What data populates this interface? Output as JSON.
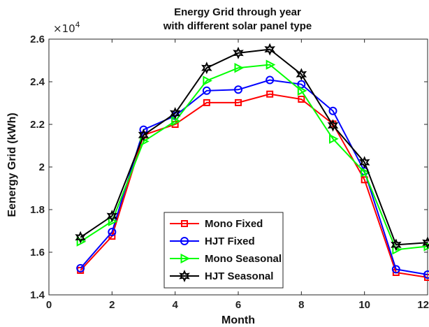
{
  "chart_data": {
    "type": "line",
    "title_line1": "Energy Grid through year",
    "title_line2": "with different solar panel type",
    "xlabel": "Month",
    "ylabel": "Eenergy Grid (kWh)",
    "y_exponent_base": "×10",
    "y_exponent_power": "4",
    "xlim": [
      0,
      12
    ],
    "ylim": [
      1.4,
      2.6
    ],
    "x_ticks": [
      0,
      2,
      4,
      6,
      8,
      10,
      12
    ],
    "x_tick_labels": [
      "0",
      "2",
      "4",
      "6",
      "8",
      "10",
      "12"
    ],
    "y_ticks": [
      1.4,
      1.6,
      1.8,
      2.0,
      2.2,
      2.4,
      2.6
    ],
    "y_tick_labels": [
      "1.4",
      "1.6",
      "1.8",
      "2",
      "2.2",
      "2.4",
      "2.6"
    ],
    "x": [
      1,
      2,
      3,
      4,
      5,
      6,
      7,
      8,
      9,
      10,
      11,
      12
    ],
    "grid": false,
    "legend_position": "bottom-center",
    "series": [
      {
        "name": "Mono Fixed",
        "color": "#ff0000",
        "marker": "square",
        "values": [
          1.515,
          1.675,
          2.15,
          2.2,
          2.302,
          2.302,
          2.342,
          2.318,
          2.202,
          1.94,
          1.505,
          1.482
        ]
      },
      {
        "name": "HJT Fixed",
        "color": "#0000ff",
        "marker": "circle",
        "values": [
          1.525,
          1.695,
          2.175,
          2.24,
          2.358,
          2.363,
          2.408,
          2.388,
          2.263,
          1.98,
          1.52,
          1.495
        ]
      },
      {
        "name": "Mono Seasonal",
        "color": "#00ff00",
        "marker": "triangle-right",
        "values": [
          1.65,
          1.745,
          2.12,
          2.215,
          2.405,
          2.465,
          2.48,
          2.358,
          2.132,
          1.975,
          1.612,
          1.628
        ]
      },
      {
        "name": "HJT Seasonal",
        "color": "#000000",
        "marker": "hexagram",
        "values": [
          1.67,
          1.77,
          2.15,
          2.252,
          2.465,
          2.535,
          2.552,
          2.435,
          2.195,
          2.022,
          1.635,
          1.645
        ]
      }
    ]
  }
}
